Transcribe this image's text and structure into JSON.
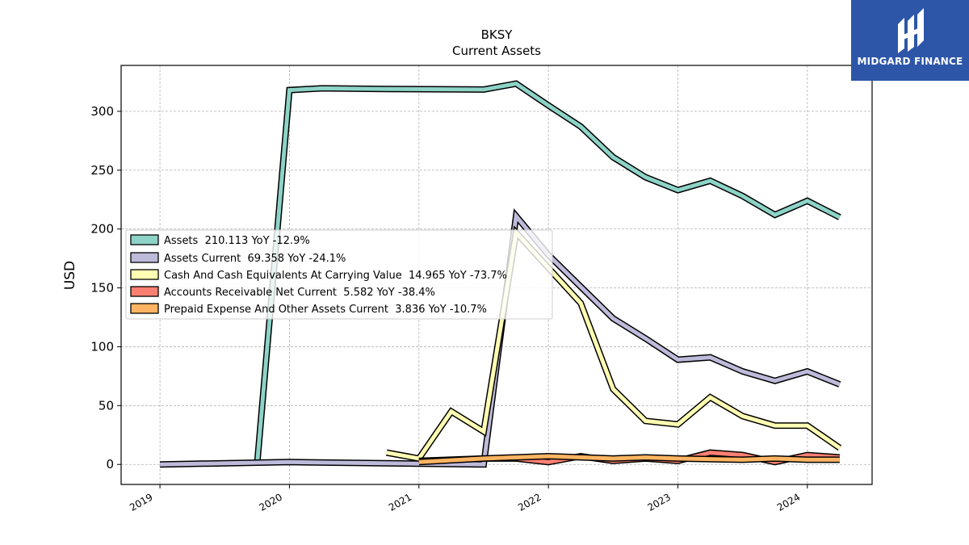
{
  "brand": {
    "name": "MIDGARD FINANCE",
    "bg_color": "#2d56a8"
  },
  "chart_data": {
    "type": "line",
    "title": "BKSY",
    "subtitle": "Current  Assets",
    "ylabel": "USD",
    "xlabel": "",
    "xlim": [
      2018.7,
      2024.5
    ],
    "ylim": [
      -17,
      339
    ],
    "x_ticks": [
      2019,
      2020,
      2021,
      2022,
      2023,
      2024
    ],
    "x_tick_labels": [
      "2019",
      "2020",
      "2021",
      "2022",
      "2023",
      "2024"
    ],
    "y_ticks": [
      0,
      50,
      100,
      150,
      200,
      250,
      300
    ],
    "y_tick_labels": [
      "0",
      "50",
      "100",
      "150",
      "200",
      "250",
      "300"
    ],
    "grid": true,
    "legend_position": "center-left",
    "series": [
      {
        "name": "Assets  210.113 YoY -12.9%",
        "color": "#8dd3c7",
        "points": [
          [
            2019.75,
            0
          ],
          [
            2020.0,
            318
          ],
          [
            2020.25,
            319.5
          ],
          [
            2020.75,
            319
          ],
          [
            2021.5,
            318.5
          ],
          [
            2021.75,
            323.5
          ],
          [
            2022.0,
            305
          ],
          [
            2022.25,
            287
          ],
          [
            2022.5,
            261
          ],
          [
            2022.75,
            244
          ],
          [
            2023.0,
            233
          ],
          [
            2023.25,
            241
          ],
          [
            2023.5,
            228
          ],
          [
            2023.75,
            212
          ],
          [
            2024.0,
            224
          ],
          [
            2024.25,
            210
          ]
        ]
      },
      {
        "name": "Assets Current  69.358 YoY -24.1%",
        "color": "#bebada",
        "points": [
          [
            2019.0,
            0
          ],
          [
            2020.0,
            2
          ],
          [
            2021.5,
            0
          ],
          [
            2021.75,
            211
          ],
          [
            2022.0,
            178
          ],
          [
            2022.25,
            151
          ],
          [
            2022.5,
            124
          ],
          [
            2022.75,
            107
          ],
          [
            2023.0,
            89
          ],
          [
            2023.25,
            91
          ],
          [
            2023.5,
            79
          ],
          [
            2023.75,
            71
          ],
          [
            2024.0,
            79
          ],
          [
            2024.25,
            68
          ]
        ]
      },
      {
        "name": "Cash And Cash Equivalents At Carrying Value  14.965 YoY -73.7%",
        "color": "#ffffb3",
        "points": [
          [
            2020.75,
            10
          ],
          [
            2021.0,
            5
          ],
          [
            2021.25,
            45
          ],
          [
            2021.5,
            28
          ],
          [
            2021.75,
            197
          ],
          [
            2022.0,
            167
          ],
          [
            2022.25,
            137
          ],
          [
            2022.5,
            64
          ],
          [
            2022.75,
            37
          ],
          [
            2023.0,
            34
          ],
          [
            2023.25,
            57
          ],
          [
            2023.5,
            41
          ],
          [
            2023.75,
            33
          ],
          [
            2024.0,
            33
          ],
          [
            2024.25,
            14
          ]
        ]
      },
      {
        "name": "Accounts Receivable Net Current  5.582 YoY -38.4%",
        "color": "#fb8072",
        "points": [
          [
            2021.0,
            3
          ],
          [
            2021.5,
            5
          ],
          [
            2021.75,
            5
          ],
          [
            2022.0,
            2
          ],
          [
            2022.25,
            7
          ],
          [
            2022.5,
            3
          ],
          [
            2022.75,
            5
          ],
          [
            2023.0,
            3
          ],
          [
            2023.25,
            10
          ],
          [
            2023.5,
            8
          ],
          [
            2023.75,
            2
          ],
          [
            2024.0,
            8
          ],
          [
            2024.25,
            6
          ]
        ]
      },
      {
        "name": "Prepaid Expense And Other Assets Current  3.836 YoY -10.7%",
        "color": "#fdb462",
        "points": [
          [
            2021.0,
            2
          ],
          [
            2021.5,
            5
          ],
          [
            2022.0,
            7
          ],
          [
            2022.5,
            5
          ],
          [
            2022.75,
            6
          ],
          [
            2023.0,
            5
          ],
          [
            2023.5,
            4
          ],
          [
            2023.75,
            5
          ],
          [
            2024.0,
            4
          ],
          [
            2024.25,
            4
          ]
        ]
      }
    ]
  }
}
